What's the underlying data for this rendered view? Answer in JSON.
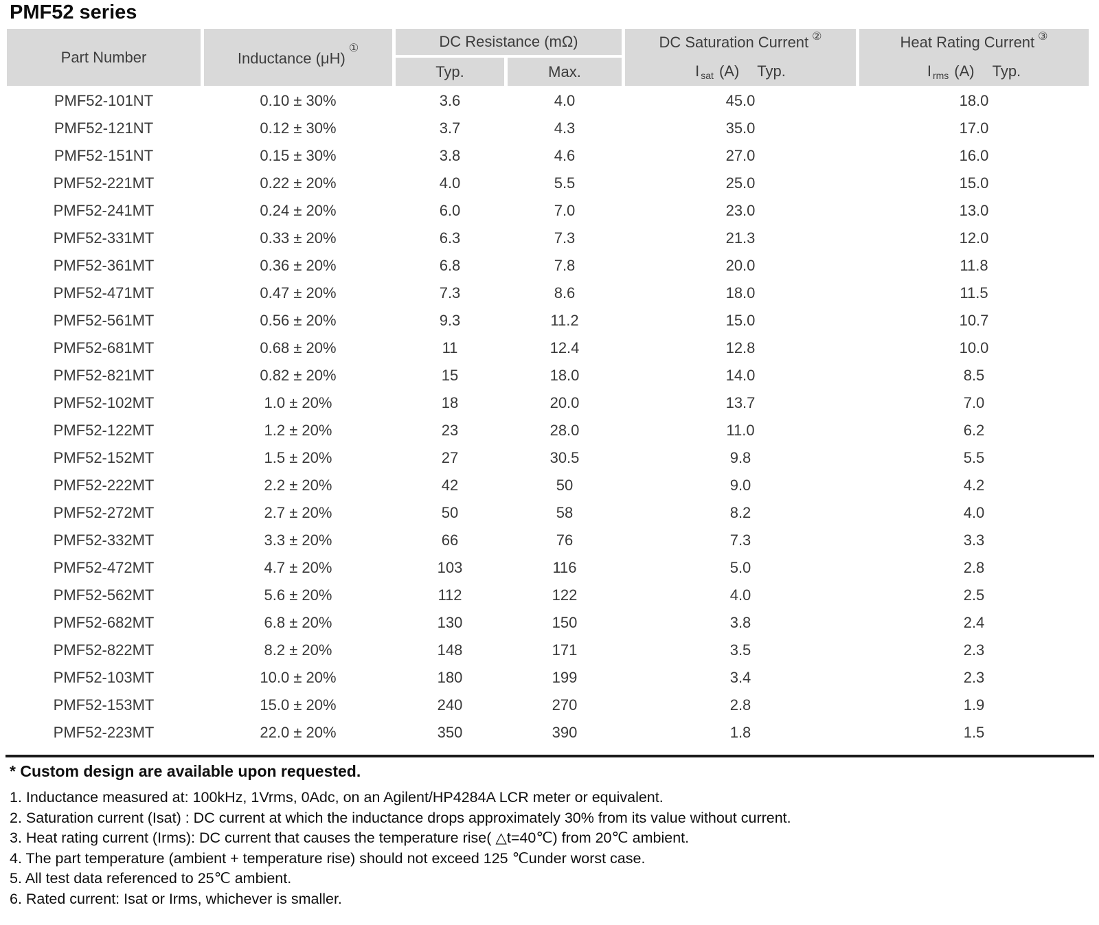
{
  "title": "PMF52 series",
  "colors": {
    "header_bg": "#d9d9d9",
    "rule": "#1a1a1a"
  },
  "table": {
    "header": {
      "part_number": "Part Number",
      "inductance": {
        "label": "Inductance (μH)",
        "sup": "①"
      },
      "dc_resistance": {
        "label": "DC Resistance (mΩ)",
        "typ": "Typ.",
        "max": "Max."
      },
      "saturation": {
        "label": "DC Saturation Current",
        "sup": "②",
        "symbol": "I",
        "subscript": "sat",
        "unit": "(A)",
        "qualifier": "Typ."
      },
      "heat": {
        "label": "Heat Rating Current",
        "sup": "③",
        "symbol": "I",
        "subscript": "rms",
        "unit": "(A)",
        "qualifier": "Typ."
      }
    },
    "rows": [
      {
        "part": "PMF52-101NT",
        "inductance": "0.10 ± 30%",
        "typ": "3.6",
        "max": "4.0",
        "isat": "45.0",
        "irms": "18.0"
      },
      {
        "part": "PMF52-121NT",
        "inductance": "0.12 ± 30%",
        "typ": "3.7",
        "max": "4.3",
        "isat": "35.0",
        "irms": "17.0"
      },
      {
        "part": "PMF52-151NT",
        "inductance": "0.15 ± 30%",
        "typ": "3.8",
        "max": "4.6",
        "isat": "27.0",
        "irms": "16.0"
      },
      {
        "part": "PMF52-221MT",
        "inductance": "0.22 ± 20%",
        "typ": "4.0",
        "max": "5.5",
        "isat": "25.0",
        "irms": "15.0"
      },
      {
        "part": "PMF52-241MT",
        "inductance": "0.24 ± 20%",
        "typ": "6.0",
        "max": "7.0",
        "isat": "23.0",
        "irms": "13.0"
      },
      {
        "part": "PMF52-331MT",
        "inductance": "0.33 ± 20%",
        "typ": "6.3",
        "max": "7.3",
        "isat": "21.3",
        "irms": "12.0"
      },
      {
        "part": "PMF52-361MT",
        "inductance": "0.36 ± 20%",
        "typ": "6.8",
        "max": "7.8",
        "isat": "20.0",
        "irms": "11.8"
      },
      {
        "part": "PMF52-471MT",
        "inductance": "0.47 ± 20%",
        "typ": "7.3",
        "max": "8.6",
        "isat": "18.0",
        "irms": "11.5"
      },
      {
        "part": "PMF52-561MT",
        "inductance": "0.56 ± 20%",
        "typ": "9.3",
        "max": "11.2",
        "isat": "15.0",
        "irms": "10.7"
      },
      {
        "part": "PMF52-681MT",
        "inductance": "0.68 ± 20%",
        "typ": "11",
        "max": "12.4",
        "isat": "12.8",
        "irms": "10.0"
      },
      {
        "part": "PMF52-821MT",
        "inductance": "0.82 ± 20%",
        "typ": "15",
        "max": "18.0",
        "isat": "14.0",
        "irms": "8.5"
      },
      {
        "part": "PMF52-102MT",
        "inductance": "1.0 ± 20%",
        "typ": "18",
        "max": "20.0",
        "isat": "13.7",
        "irms": "7.0"
      },
      {
        "part": "PMF52-122MT",
        "inductance": "1.2 ± 20%",
        "typ": "23",
        "max": "28.0",
        "isat": "11.0",
        "irms": "6.2"
      },
      {
        "part": "PMF52-152MT",
        "inductance": "1.5 ± 20%",
        "typ": "27",
        "max": "30.5",
        "isat": "9.8",
        "irms": "5.5"
      },
      {
        "part": "PMF52-222MT",
        "inductance": "2.2 ± 20%",
        "typ": "42",
        "max": "50",
        "isat": "9.0",
        "irms": "4.2"
      },
      {
        "part": "PMF52-272MT",
        "inductance": "2.7 ± 20%",
        "typ": "50",
        "max": "58",
        "isat": "8.2",
        "irms": "4.0"
      },
      {
        "part": "PMF52-332MT",
        "inductance": "3.3 ± 20%",
        "typ": "66",
        "max": "76",
        "isat": "7.3",
        "irms": "3.3"
      },
      {
        "part": "PMF52-472MT",
        "inductance": "4.7 ± 20%",
        "typ": "103",
        "max": "116",
        "isat": "5.0",
        "irms": "2.8"
      },
      {
        "part": "PMF52-562MT",
        "inductance": "5.6 ± 20%",
        "typ": "112",
        "max": "122",
        "isat": "4.0",
        "irms": "2.5"
      },
      {
        "part": "PMF52-682MT",
        "inductance": "6.8 ± 20%",
        "typ": "130",
        "max": "150",
        "isat": "3.8",
        "irms": "2.4"
      },
      {
        "part": "PMF52-822MT",
        "inductance": "8.2 ± 20%",
        "typ": "148",
        "max": "171",
        "isat": "3.5",
        "irms": "2.3"
      },
      {
        "part": "PMF52-103MT",
        "inductance": "10.0 ± 20%",
        "typ": "180",
        "max": "199",
        "isat": "3.4",
        "irms": "2.3"
      },
      {
        "part": "PMF52-153MT",
        "inductance": "15.0 ± 20%",
        "typ": "240",
        "max": "270",
        "isat": "2.8",
        "irms": "1.9"
      },
      {
        "part": "PMF52-223MT",
        "inductance": "22.0 ± 20%",
        "typ": "350",
        "max": "390",
        "isat": "1.8",
        "irms": "1.5"
      }
    ]
  },
  "footnotes": {
    "custom": "* Custom design are available upon requested.",
    "items": [
      "1. Inductance measured at: 100kHz, 1Vrms, 0Adc, on an Agilent/HP4284A LCR meter or equivalent.",
      "2. Saturation current (Isat) : DC current at which the inductance drops approximately 30% from its value without current.",
      "3. Heat rating current (Irms): DC current that causes the temperature rise( △t=40℃) from 20℃ ambient.",
      "4. The part temperature (ambient + temperature rise) should not exceed 125 ℃under worst case.",
      "5. All test data referenced to 25℃ ambient.",
      "6. Rated current: Isat or Irms, whichever is smaller."
    ]
  }
}
